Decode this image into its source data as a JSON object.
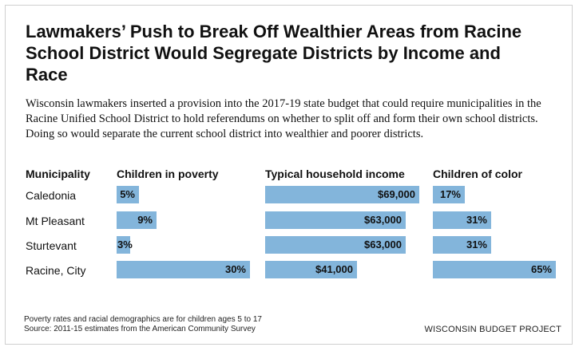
{
  "title": "Lawmakers’ Push to Break Off Wealthier Areas from Racine School District Would Segregate Districts by Income and Race",
  "subtitle": "Wisconsin lawmakers inserted a provision into the 2017-19 state budget that could require municipalities in the Racine Unified School District to hold referendums on whether to split off and form their own school districts. Doing so would separate the current school district into wealthier and poorer districts.",
  "colors": {
    "bar": "#83b5db",
    "text": "#111111"
  },
  "chart_data": {
    "type": "bar",
    "orientation": "horizontal",
    "category_header": "Municipality",
    "categories": [
      "Caledonia",
      "Mt Pleasant",
      "Sturtevant",
      "Racine, City"
    ],
    "series": [
      {
        "name": "Children in poverty",
        "values": [
          5,
          9,
          3,
          30
        ],
        "labels": [
          "5%",
          "9%",
          "3%",
          "30%"
        ],
        "unit": "%",
        "max": 30,
        "label_align": "right"
      },
      {
        "name": "Typical household income",
        "values": [
          69000,
          63000,
          63000,
          41000
        ],
        "labels": [
          "$69,000",
          "$63,000",
          "$63,000",
          "$41,000"
        ],
        "unit": "$",
        "max": 69000,
        "label_align": "right"
      },
      {
        "name": "Children of color",
        "values": [
          17,
          31,
          31,
          65
        ],
        "labels": [
          "17%",
          "31%",
          "31%",
          "65%"
        ],
        "unit": "%",
        "max": 65,
        "label_align": "right"
      }
    ]
  },
  "footnotes": [
    "Poverty rates and racial demographics are for children ages 5 to 17",
    "Source: 2011-15 estimates from the American Community Survey"
  ],
  "brand": "WISCONSIN BUDGET PROJECT"
}
